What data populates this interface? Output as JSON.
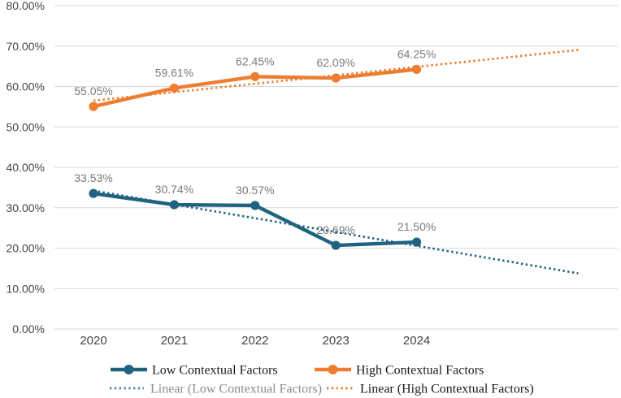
{
  "chart_data": {
    "type": "line",
    "title": "",
    "categories": [
      "2020",
      "2021",
      "2022",
      "2023",
      "2024"
    ],
    "series": [
      {
        "name": "Low Contextual Factors",
        "color": "#1F6380",
        "values": [
          33.53,
          30.74,
          30.57,
          20.69,
          21.5
        ],
        "point_labels": [
          "33.53%",
          "30.74%",
          "30.57%",
          "20.69%",
          "21.50%"
        ]
      },
      {
        "name": "High Contextual Factors",
        "color": "#ED7D31",
        "values": [
          55.05,
          59.61,
          62.45,
          62.09,
          64.25
        ],
        "point_labels": [
          "55.05%",
          "59.61%",
          "62.45%",
          "62.09%",
          "64.25%"
        ]
      }
    ],
    "trendlines": [
      {
        "name": "Linear (Low Contextual Factors)",
        "color": "#1F6380",
        "start_value": 34.23,
        "end_value": 13.76,
        "forecast_periods": 2
      },
      {
        "name": "Linear (High Contextual Factors)",
        "color": "#ED7D31",
        "start_value": 56.51,
        "end_value": 69.04,
        "forecast_periods": 2
      }
    ],
    "y_axis": {
      "min": 0,
      "max": 80,
      "step": 10,
      "tick_labels": [
        "0.00%",
        "10.00%",
        "20.00%",
        "30.00%",
        "40.00%",
        "50.00%",
        "60.00%",
        "70.00%",
        "80.00%"
      ]
    },
    "x_axis": {
      "tick_labels": [
        "2020",
        "2021",
        "2022",
        "2023",
        "2024"
      ]
    },
    "legend": {
      "position": "bottom",
      "entries": [
        {
          "label": "Low Contextual Factors",
          "sample": "line-marker",
          "color": "#1F6380",
          "text_color": "#1A1A1A"
        },
        {
          "label": "High Contextual Factors",
          "sample": "line-marker",
          "color": "#ED7D31",
          "text_color": "#1A1A1A"
        },
        {
          "label": "Linear (Low Contextual Factors)",
          "sample": "dotted-line",
          "color": "#4C86A8",
          "text_color": "#8C8C8C"
        },
        {
          "label": "Linear (High Contextual Factors)",
          "sample": "dotted-line",
          "color": "#ED7D31",
          "text_color": "#1A1A1A"
        }
      ]
    },
    "gridlines": true,
    "colors": {
      "background": "#FFFFFF",
      "gridline": "#D9D9D9",
      "axis_label": "#464646",
      "data_label": "#7A7A7A"
    }
  }
}
